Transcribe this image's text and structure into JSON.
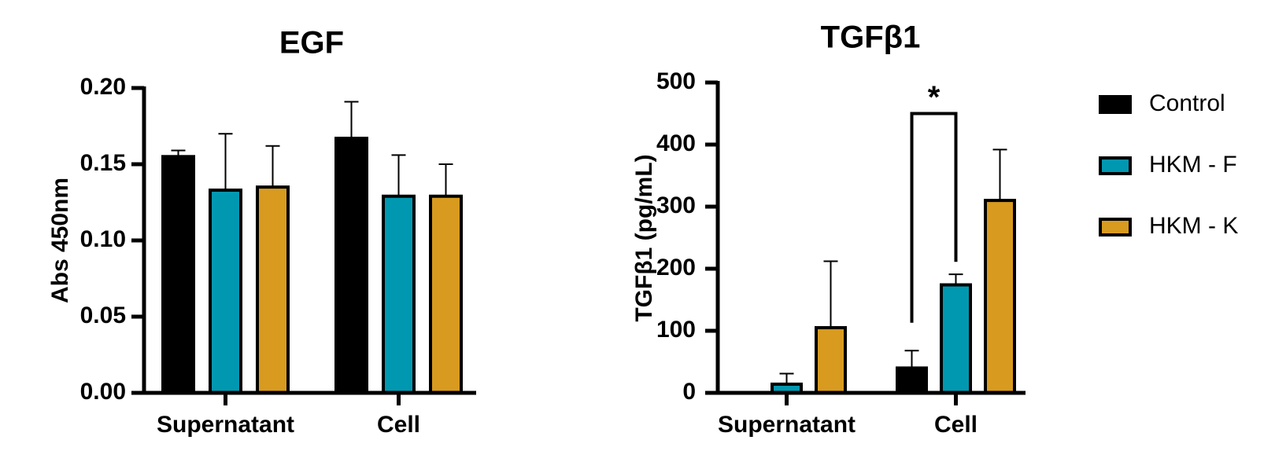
{
  "colors": {
    "Control": "#000000",
    "HKM - F": "#0098b0",
    "HKM - K": "#d89b1f",
    "axis": "#000000"
  },
  "legend": {
    "placement": "right",
    "items": [
      "Control",
      "HKM - F",
      "HKM - K"
    ]
  },
  "chart_data": [
    {
      "type": "bar",
      "title": "EGF",
      "ylabel": "Abs 450nm",
      "xlabel": "",
      "ylim": [
        0,
        0.2
      ],
      "yticks": [
        0.0,
        0.05,
        0.1,
        0.15,
        0.2
      ],
      "ytick_labels": [
        "0.00",
        "0.05",
        "0.10",
        "0.15",
        "0.20"
      ],
      "categories": [
        "Supernatant",
        "Cell"
      ],
      "series": [
        {
          "name": "Control",
          "values": [
            0.155,
            0.167
          ],
          "errors": [
            0.004,
            0.024
          ]
        },
        {
          "name": "HKM - F",
          "values": [
            0.133,
            0.129
          ],
          "errors": [
            0.037,
            0.027
          ]
        },
        {
          "name": "HKM - K",
          "values": [
            0.135,
            0.129
          ],
          "errors": [
            0.027,
            0.021
          ]
        }
      ],
      "annotations": []
    },
    {
      "type": "bar",
      "title": "TGFβ1",
      "ylabel": "TGFβ1 (pg/mL)",
      "xlabel": "",
      "ylim": [
        0,
        500
      ],
      "yticks": [
        0,
        100,
        200,
        300,
        400,
        500
      ],
      "ytick_labels": [
        "0",
        "100",
        "200",
        "300",
        "400",
        "500"
      ],
      "categories": [
        "Supernatant",
        "Cell"
      ],
      "series": [
        {
          "name": "Control",
          "values": [
            0,
            40
          ],
          "errors": [
            0,
            28
          ]
        },
        {
          "name": "HKM - F",
          "values": [
            14,
            174
          ],
          "errors": [
            17,
            17
          ]
        },
        {
          "name": "HKM - K",
          "values": [
            105,
            310
          ],
          "errors": [
            107,
            82
          ]
        }
      ],
      "annotations": [
        {
          "text": "*",
          "category": "Cell",
          "from_series": "Control",
          "to_series": "HKM - F",
          "bracket_value": 450
        }
      ]
    }
  ]
}
